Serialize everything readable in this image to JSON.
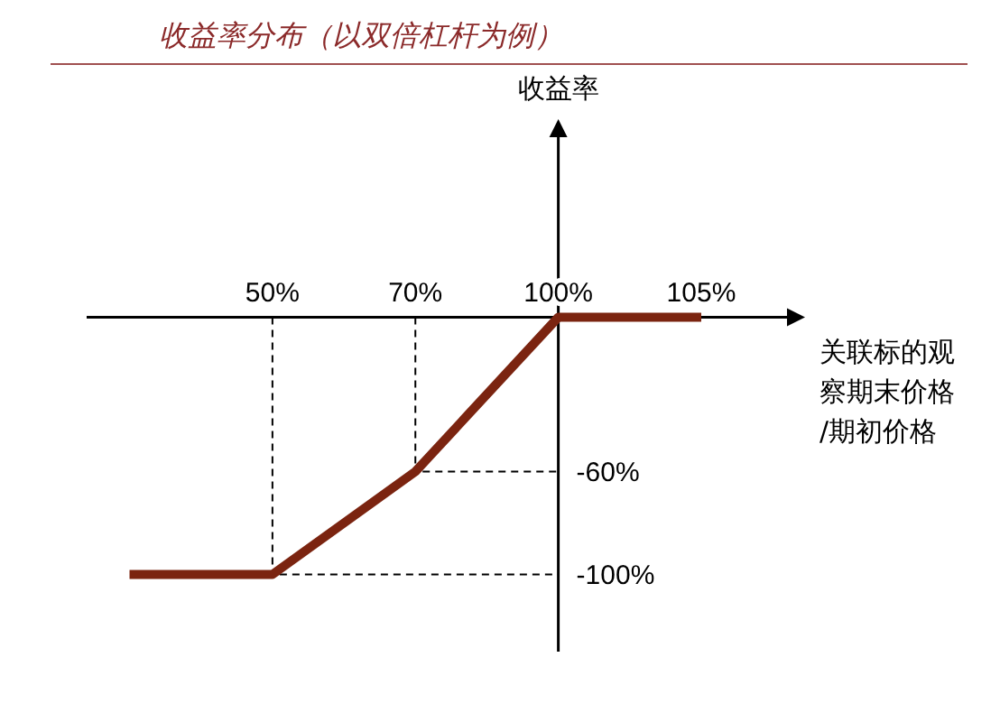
{
  "chart_data": {
    "type": "line",
    "title": "收益率分布（以双倍杠杆为例）",
    "ylabel": "收益率",
    "xlabel": "关联标的观察期末价格/期初价格",
    "categories": [
      null,
      "50%",
      "70%",
      "100%",
      "105%"
    ],
    "series": [
      {
        "color": "#7b2410",
        "values": [
          -100,
          -100,
          -60,
          0,
          0
        ]
      }
    ],
    "ylim": [
      -130,
      70
    ],
    "yticks": [
      {
        "value": -100,
        "label": "-100%"
      },
      {
        "value": -60,
        "label": "-60%"
      }
    ],
    "marker": "none",
    "line_style": "solid"
  }
}
